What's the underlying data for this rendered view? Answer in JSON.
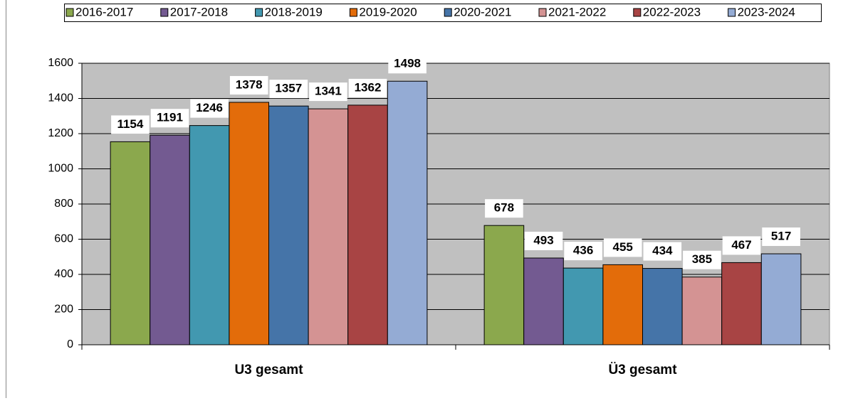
{
  "chart_data": {
    "type": "bar",
    "categories": [
      "U3 gesamt",
      "Ü3 gesamt"
    ],
    "series": [
      {
        "name": "2016-2017",
        "color": "#8ba84d",
        "values": [
          1154,
          678
        ]
      },
      {
        "name": "2017-2018",
        "color": "#735a91",
        "values": [
          1191,
          493
        ]
      },
      {
        "name": "2018-2019",
        "color": "#4298b0",
        "values": [
          1246,
          436
        ]
      },
      {
        "name": "2019-2020",
        "color": "#e36c0a",
        "values": [
          1378,
          455
        ]
      },
      {
        "name": "2020-2021",
        "color": "#4574a8",
        "values": [
          1357,
          434
        ]
      },
      {
        "name": "2021-2022",
        "color": "#d49393",
        "values": [
          1341,
          385
        ]
      },
      {
        "name": "2022-2023",
        "color": "#a84444",
        "values": [
          1362,
          467
        ]
      },
      {
        "name": "2023-2024",
        "color": "#94abd4",
        "values": [
          1498,
          517
        ]
      }
    ],
    "ylim": [
      0,
      1600
    ],
    "yticks": [
      0,
      200,
      400,
      600,
      800,
      1000,
      1200,
      1400,
      1600
    ],
    "grid": true,
    "legend": "top"
  }
}
